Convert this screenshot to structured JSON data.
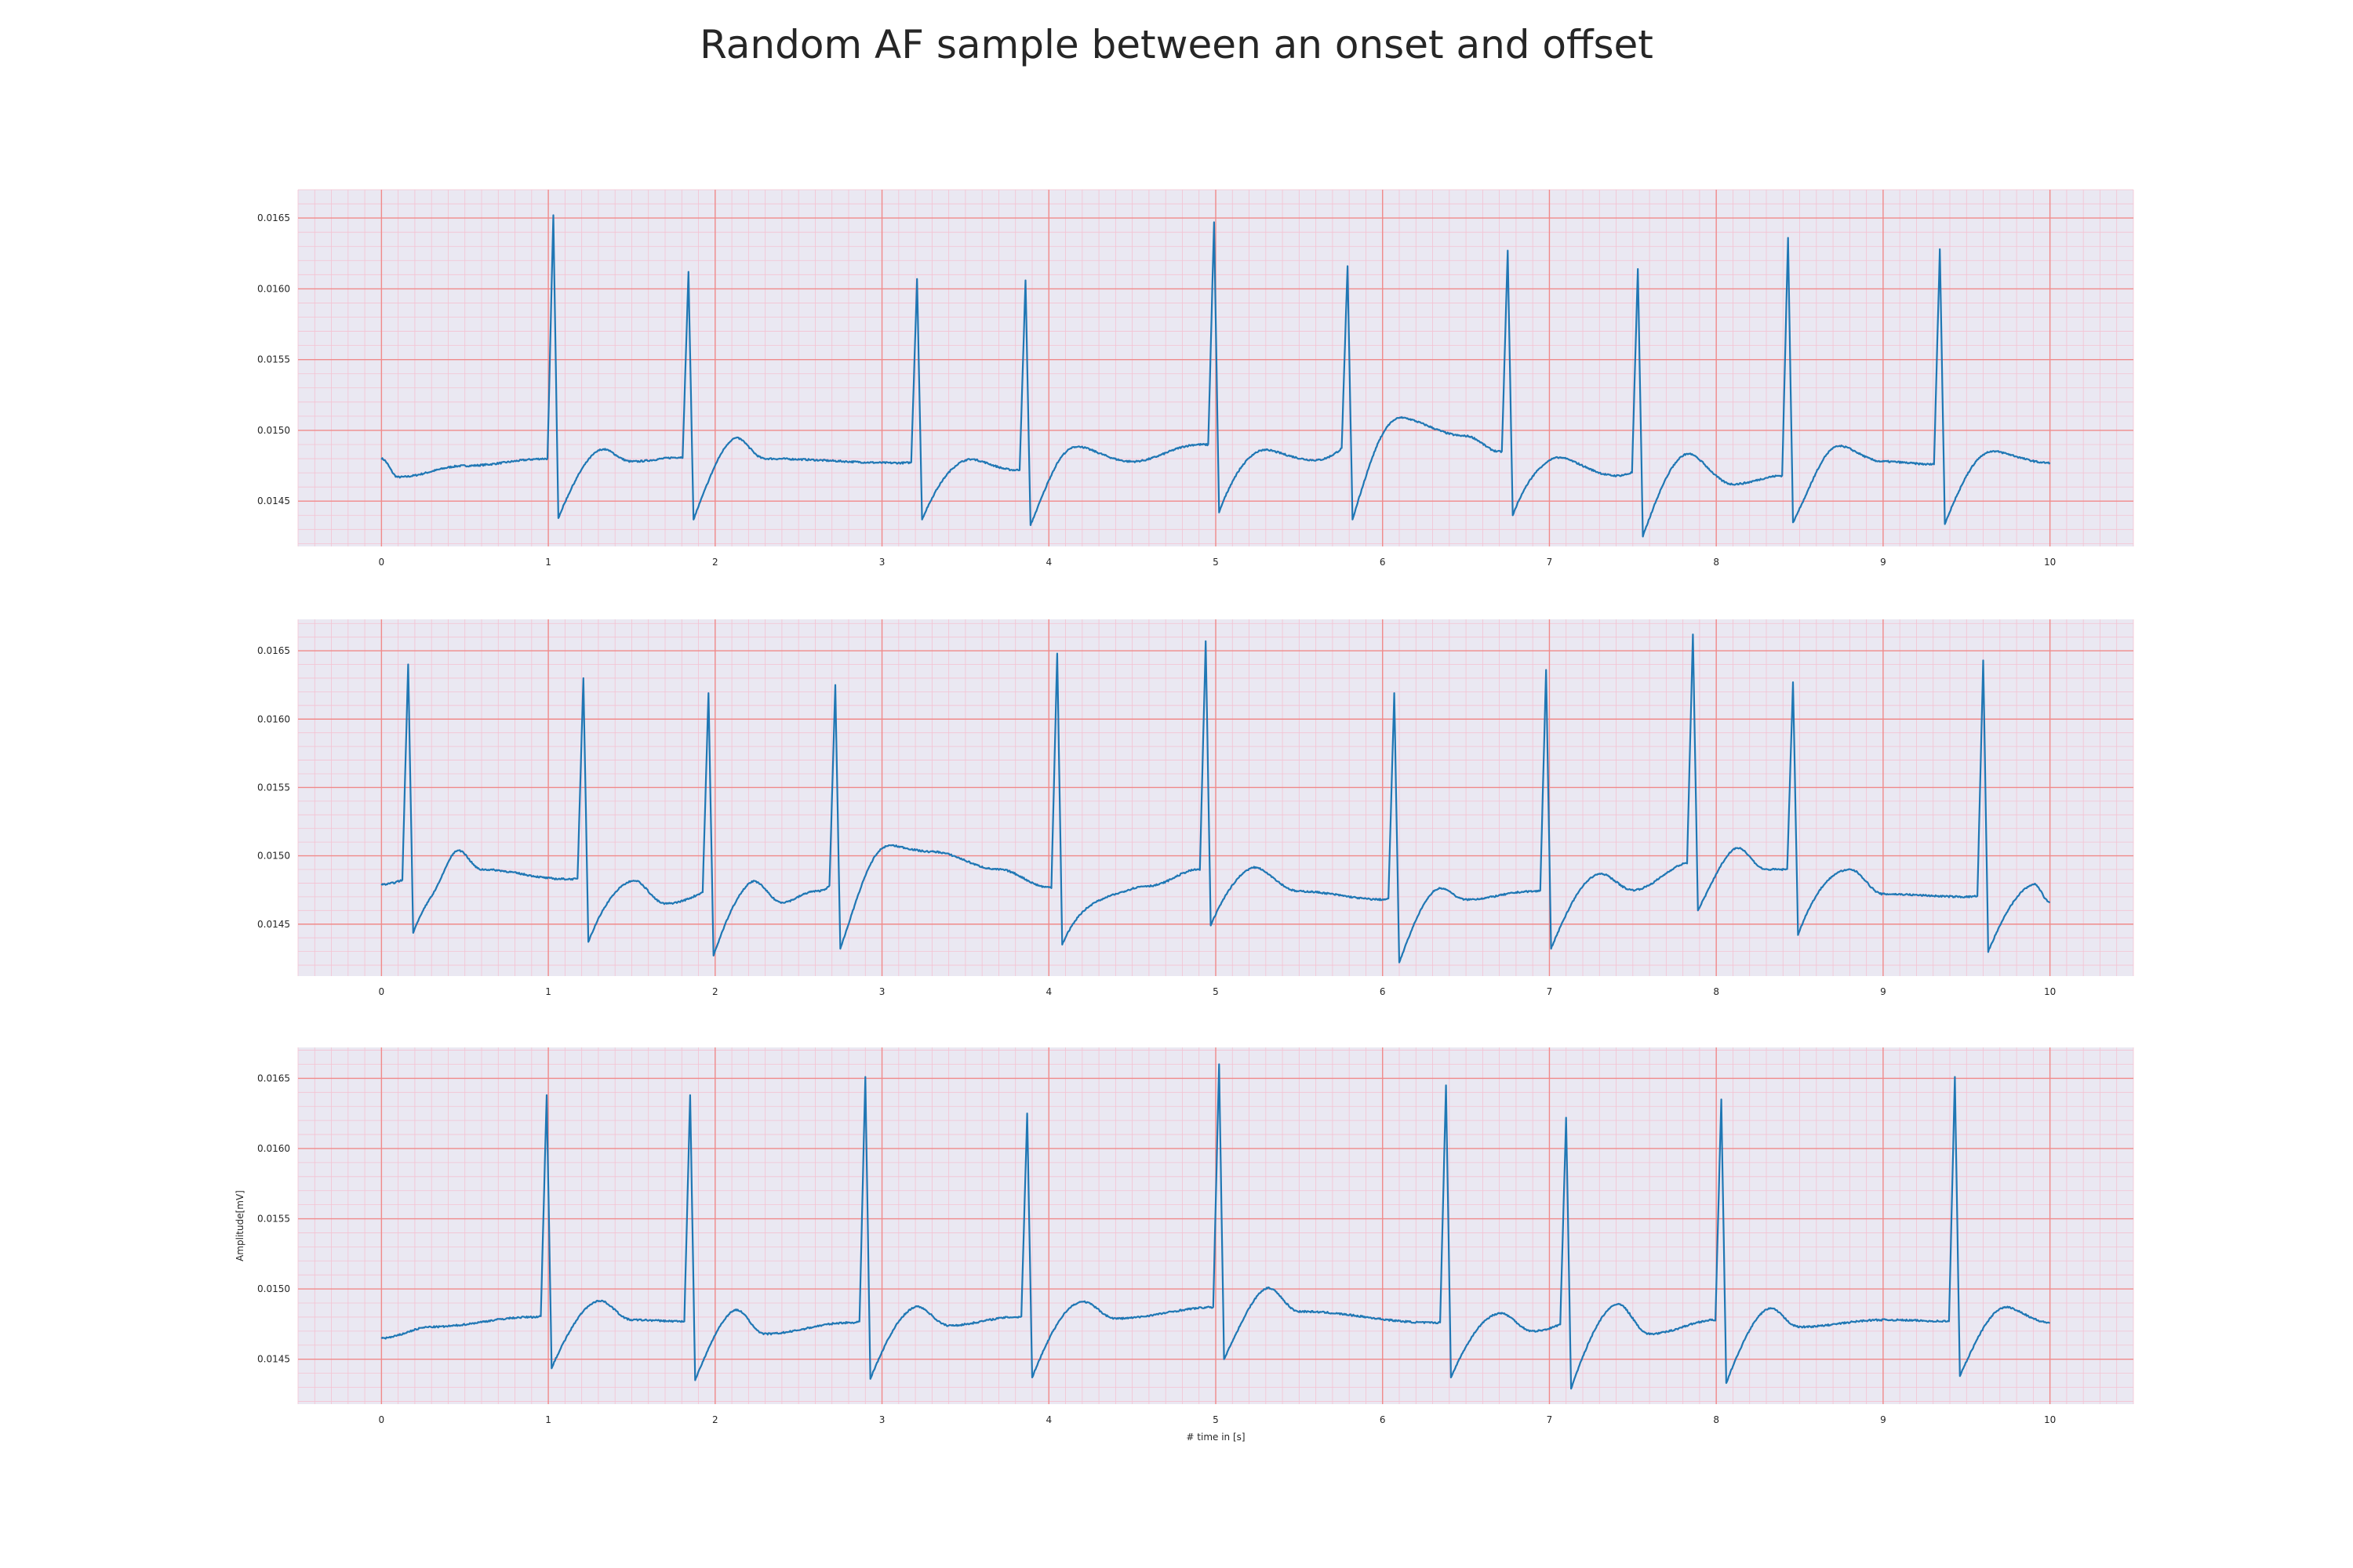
{
  "title": "Random AF sample between an onset and offset",
  "chart_data": [
    {
      "type": "line",
      "xlabel": "",
      "ylabel": "",
      "xlim": [
        -0.5,
        10.5
      ],
      "ylim": [
        0.01418,
        0.0167
      ],
      "xticks": [
        0,
        1,
        2,
        3,
        4,
        5,
        6,
        7,
        8,
        9,
        10
      ],
      "yticks": [
        "0.0145",
        "0.0150",
        "0.0155",
        "0.0160",
        "0.0165"
      ],
      "grid": true,
      "beats": [
        {
          "t": 1.03,
          "peak": 0.01652,
          "trough": 0.01438
        },
        {
          "t": 1.84,
          "peak": 0.01612,
          "trough": 0.01437
        },
        {
          "t": 3.21,
          "peak": 0.01607,
          "trough": 0.01437
        },
        {
          "t": 3.86,
          "peak": 0.01606,
          "trough": 0.01433
        },
        {
          "t": 4.99,
          "peak": 0.01647,
          "trough": 0.01442
        },
        {
          "t": 5.79,
          "peak": 0.01616,
          "trough": 0.01437
        },
        {
          "t": 6.75,
          "peak": 0.01627,
          "trough": 0.0144
        },
        {
          "t": 7.53,
          "peak": 0.01614,
          "trough": 0.01425
        },
        {
          "t": 8.43,
          "peak": 0.01636,
          "trough": 0.01435
        },
        {
          "t": 9.34,
          "peak": 0.01628,
          "trough": 0.01434
        }
      ],
      "baseline": [
        [
          0,
          0.0148
        ],
        [
          0.1,
          0.01467
        ],
        [
          0.5,
          0.01475
        ],
        [
          1.0,
          0.0148
        ],
        [
          1.3,
          0.01488
        ],
        [
          1.5,
          0.01478
        ],
        [
          1.8,
          0.01481
        ],
        [
          2.1,
          0.01497
        ],
        [
          2.3,
          0.0148
        ],
        [
          3.1,
          0.01477
        ],
        [
          3.5,
          0.0148
        ],
        [
          3.8,
          0.01472
        ],
        [
          4.1,
          0.0149
        ],
        [
          4.5,
          0.01478
        ],
        [
          4.9,
          0.0149
        ],
        [
          5.2,
          0.01488
        ],
        [
          5.6,
          0.01479
        ],
        [
          6.05,
          0.0151
        ],
        [
          6.5,
          0.01496
        ],
        [
          6.7,
          0.01485
        ],
        [
          7.0,
          0.01482
        ],
        [
          7.4,
          0.01468
        ],
        [
          7.8,
          0.01485
        ],
        [
          8.1,
          0.01462
        ],
        [
          8.4,
          0.01468
        ],
        [
          8.7,
          0.0149
        ],
        [
          9.0,
          0.01478
        ],
        [
          9.3,
          0.01476
        ],
        [
          9.6,
          0.01486
        ],
        [
          10.0,
          0.01477
        ]
      ]
    },
    {
      "type": "line",
      "xlabel": "",
      "ylabel": "",
      "xlim": [
        -0.5,
        10.5
      ],
      "ylim": [
        0.01412,
        0.01673
      ],
      "xticks": [
        0,
        1,
        2,
        3,
        4,
        5,
        6,
        7,
        8,
        9,
        10
      ],
      "yticks": [
        "0.0145",
        "0.0150",
        "0.0155",
        "0.0160",
        "0.0165"
      ],
      "grid": true,
      "beats": [
        {
          "t": 0.16,
          "peak": 0.0164,
          "trough": 0.01444
        },
        {
          "t": 1.21,
          "peak": 0.0163,
          "trough": 0.01437
        },
        {
          "t": 1.96,
          "peak": 0.01619,
          "trough": 0.01427
        },
        {
          "t": 2.72,
          "peak": 0.01625,
          "trough": 0.01432
        },
        {
          "t": 4.05,
          "peak": 0.01648,
          "trough": 0.01435
        },
        {
          "t": 4.94,
          "peak": 0.01657,
          "trough": 0.01449
        },
        {
          "t": 6.07,
          "peak": 0.01619,
          "trough": 0.01422
        },
        {
          "t": 6.98,
          "peak": 0.01636,
          "trough": 0.01432
        },
        {
          "t": 7.86,
          "peak": 0.01662,
          "trough": 0.0146
        },
        {
          "t": 8.46,
          "peak": 0.01627,
          "trough": 0.01442
        },
        {
          "t": 9.6,
          "peak": 0.01643,
          "trough": 0.0143
        }
      ],
      "baseline": [
        [
          0,
          0.01479
        ],
        [
          0.3,
          0.01488
        ],
        [
          0.45,
          0.01505
        ],
        [
          0.6,
          0.0149
        ],
        [
          1.1,
          0.01483
        ],
        [
          1.5,
          0.01483
        ],
        [
          1.7,
          0.01465
        ],
        [
          2.2,
          0.01485
        ],
        [
          2.4,
          0.01466
        ],
        [
          2.6,
          0.01474
        ],
        [
          3.0,
          0.01508
        ],
        [
          3.3,
          0.01503
        ],
        [
          3.7,
          0.0149
        ],
        [
          4.0,
          0.01477
        ],
        [
          4.3,
          0.0147
        ],
        [
          4.6,
          0.01478
        ],
        [
          4.9,
          0.0149
        ],
        [
          5.2,
          0.01493
        ],
        [
          5.5,
          0.01474
        ],
        [
          6.0,
          0.01468
        ],
        [
          6.3,
          0.0148
        ],
        [
          6.5,
          0.01468
        ],
        [
          6.9,
          0.01474
        ],
        [
          7.3,
          0.01487
        ],
        [
          7.5,
          0.01475
        ],
        [
          7.85,
          0.01495
        ],
        [
          8.1,
          0.01509
        ],
        [
          8.3,
          0.0149
        ],
        [
          8.8,
          0.0149
        ],
        [
          9.0,
          0.01472
        ],
        [
          9.5,
          0.0147
        ],
        [
          9.9,
          0.0148
        ],
        [
          10.0,
          0.01466
        ]
      ]
    },
    {
      "type": "line",
      "xlabel": "# time in [s]",
      "ylabel": "Amplitude[mV]",
      "xlim": [
        -0.5,
        10.5
      ],
      "ylim": [
        0.01418,
        0.01672
      ],
      "xticks": [
        0,
        1,
        2,
        3,
        4,
        5,
        6,
        7,
        8,
        9,
        10
      ],
      "yticks": [
        "0.0145",
        "0.0150",
        "0.0155",
        "0.0160",
        "0.0165"
      ],
      "grid": true,
      "beats": [
        {
          "t": 0.99,
          "peak": 0.01638,
          "trough": 0.01444
        },
        {
          "t": 1.85,
          "peak": 0.01638,
          "trough": 0.01435
        },
        {
          "t": 2.9,
          "peak": 0.01651,
          "trough": 0.01436
        },
        {
          "t": 3.87,
          "peak": 0.01625,
          "trough": 0.01437
        },
        {
          "t": 5.02,
          "peak": 0.0166,
          "trough": 0.0145
        },
        {
          "t": 6.38,
          "peak": 0.01645,
          "trough": 0.01437
        },
        {
          "t": 7.1,
          "peak": 0.01622,
          "trough": 0.01429
        },
        {
          "t": 8.03,
          "peak": 0.01635,
          "trough": 0.01433
        },
        {
          "t": 9.43,
          "peak": 0.01651,
          "trough": 0.01438
        }
      ],
      "baseline": [
        [
          0,
          0.01465
        ],
        [
          0.3,
          0.01473
        ],
        [
          0.9,
          0.0148
        ],
        [
          1.3,
          0.01492
        ],
        [
          1.5,
          0.01478
        ],
        [
          1.8,
          0.01477
        ],
        [
          2.1,
          0.01488
        ],
        [
          2.3,
          0.01468
        ],
        [
          2.8,
          0.01476
        ],
        [
          3.2,
          0.01488
        ],
        [
          3.4,
          0.01474
        ],
        [
          3.8,
          0.0148
        ],
        [
          4.2,
          0.01491
        ],
        [
          4.4,
          0.01479
        ],
        [
          5.0,
          0.01487
        ],
        [
          5.3,
          0.01502
        ],
        [
          5.5,
          0.01484
        ],
        [
          6.3,
          0.01476
        ],
        [
          6.7,
          0.01483
        ],
        [
          6.9,
          0.0147
        ],
        [
          7.4,
          0.0149
        ],
        [
          7.6,
          0.01468
        ],
        [
          8.0,
          0.01478
        ],
        [
          8.3,
          0.01488
        ],
        [
          8.5,
          0.01473
        ],
        [
          9.0,
          0.01478
        ],
        [
          9.4,
          0.01477
        ],
        [
          9.7,
          0.01488
        ],
        [
          10.0,
          0.01476
        ]
      ]
    }
  ],
  "style": {
    "axes_bg": "#eae8f2",
    "major_grid": "#f08a8a",
    "minor_grid": "#f4c2d2",
    "line": "#1f77b4",
    "text": "#262626"
  }
}
